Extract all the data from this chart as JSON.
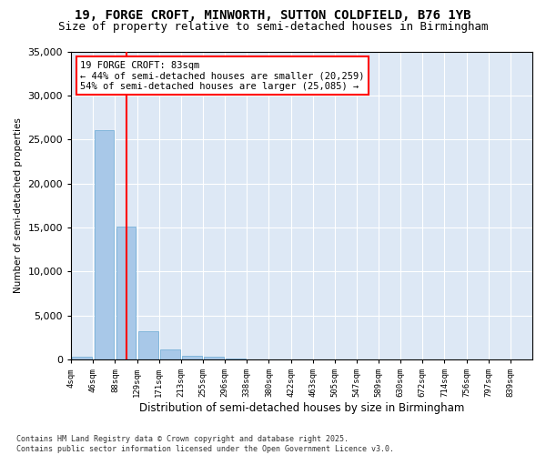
{
  "title1": "19, FORGE CROFT, MINWORTH, SUTTON COLDFIELD, B76 1YB",
  "title2": "Size of property relative to semi-detached houses in Birmingham",
  "xlabel": "Distribution of semi-detached houses by size in Birmingham",
  "ylabel": "Number of semi-detached properties",
  "footnote": "Contains HM Land Registry data © Crown copyright and database right 2025.\nContains public sector information licensed under the Open Government Licence v3.0.",
  "bins": [
    "4sqm",
    "46sqm",
    "88sqm",
    "129sqm",
    "171sqm",
    "213sqm",
    "255sqm",
    "296sqm",
    "338sqm",
    "380sqm",
    "422sqm",
    "463sqm",
    "505sqm",
    "547sqm",
    "589sqm",
    "630sqm",
    "672sqm",
    "714sqm",
    "756sqm",
    "797sqm",
    "839sqm"
  ],
  "values": [
    350,
    26100,
    15100,
    3200,
    1200,
    450,
    300,
    150,
    0,
    0,
    0,
    0,
    0,
    0,
    0,
    0,
    0,
    0,
    0,
    0,
    0
  ],
  "bar_color": "#a8c8e8",
  "bar_edge_color": "#6aaad4",
  "vline_x": 2,
  "vline_color": "red",
  "annotation_title": "19 FORGE CROFT: 83sqm",
  "annotation_line1": "← 44% of semi-detached houses are smaller (20,259)",
  "annotation_line2": "54% of semi-detached houses are larger (25,085) →",
  "ylim": [
    0,
    35000
  ],
  "yticks": [
    0,
    5000,
    10000,
    15000,
    20000,
    25000,
    30000,
    35000
  ],
  "bg_color": "#dde8f5",
  "title_fontsize": 10,
  "subtitle_fontsize": 9
}
